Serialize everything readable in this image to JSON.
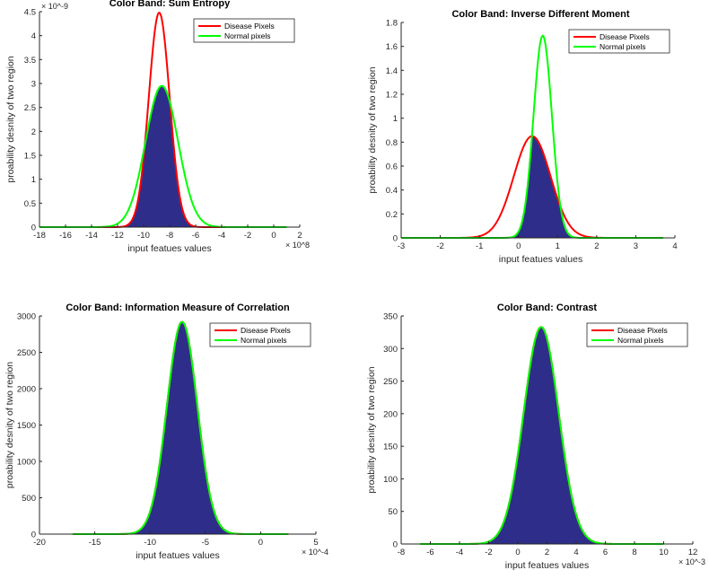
{
  "figure": {
    "ylabel_common": "proability desnity of two region",
    "xlabel_common": "input featues values"
  },
  "colors": {
    "disease": "#ff0000",
    "normal": "#00ff00",
    "fill": "#2e2e8a",
    "axis": "#262626"
  },
  "chart_data": [
    {
      "type": "line",
      "title": "Color Band: Sum Entropy",
      "xlabel": "input featues values",
      "ylabel": "proability desnity of two region",
      "xlim": [
        -18,
        2
      ],
      "ylim": [
        0,
        4.5
      ],
      "xticks": [
        -18,
        -16,
        -14,
        -12,
        -10,
        -8,
        -6,
        -4,
        -2,
        0,
        2
      ],
      "yticks": [
        0,
        0.5,
        1,
        1.5,
        2,
        2.5,
        3,
        3.5,
        4,
        4.5
      ],
      "x_exponent": "× 10^8",
      "y_exponent": "× 10^-9",
      "legend": [
        "Disease Pixels",
        "Normal pixels"
      ],
      "legend_position": "top-right",
      "series": [
        {
          "name": "Disease Pixels",
          "mean": -8.8,
          "std": 0.8,
          "peak": 4.48,
          "range": [
            -14,
            0
          ],
          "color": "#ff0000"
        },
        {
          "name": "Normal pixels",
          "mean": -8.6,
          "std": 1.25,
          "peak": 2.95,
          "range": [
            -18,
            1
          ],
          "color": "#00ff00"
        }
      ],
      "shaded_overlap": true
    },
    {
      "type": "line",
      "title": "Color Band: Inverse Different Moment",
      "xlabel": "input featues values",
      "ylabel": "proability desnity of two region",
      "xlim": [
        -3,
        4
      ],
      "ylim": [
        0,
        1.8
      ],
      "xticks": [
        -3,
        -2,
        -1,
        0,
        1,
        2,
        3,
        4
      ],
      "yticks": [
        0,
        0.2,
        0.4,
        0.6,
        0.8,
        1,
        1.2,
        1.4,
        1.6,
        1.8
      ],
      "legend": [
        "Disease Pixels",
        "Normal pixels"
      ],
      "legend_position": "top-right",
      "series": [
        {
          "name": "Disease Pixels",
          "mean": 0.35,
          "std": 0.47,
          "peak": 0.85,
          "range": [
            -3,
            3.7
          ],
          "color": "#ff0000"
        },
        {
          "name": "Normal pixels",
          "mean": 0.62,
          "std": 0.235,
          "peak": 1.69,
          "range": [
            -3,
            3.7
          ],
          "color": "#00ff00"
        }
      ],
      "shaded_overlap": true
    },
    {
      "type": "line",
      "title": "Color Band: Information Measure of Correlation",
      "xlabel": "input featues values",
      "ylabel": "proability desnity of two region",
      "xlim": [
        -20,
        5
      ],
      "ylim": [
        0,
        3000
      ],
      "xticks": [
        -20,
        -15,
        -10,
        -5,
        0,
        5
      ],
      "yticks": [
        0,
        500,
        1000,
        1500,
        2000,
        2500,
        3000
      ],
      "x_exponent": "× 10^-4",
      "legend": [
        "Disease Pixels",
        "Normal pixels"
      ],
      "legend_position": "top-right",
      "series": [
        {
          "name": "Disease Pixels",
          "mean": -7.1,
          "std": 1.37,
          "peak": 2920,
          "range": [
            -17,
            2.5
          ],
          "color": "#ff0000"
        },
        {
          "name": "Normal pixels",
          "mean": -7.1,
          "std": 1.37,
          "peak": 2920,
          "range": [
            -17,
            2.5
          ],
          "color": "#00ff00"
        }
      ],
      "shaded_overlap": true
    },
    {
      "type": "line",
      "title": "Color Band: Contrast",
      "xlabel": "input featues values",
      "ylabel": "proability desnity of two region",
      "xlim": [
        -8,
        12
      ],
      "ylim": [
        0,
        350
      ],
      "xticks": [
        -8,
        -6,
        -4,
        -2,
        0,
        2,
        4,
        6,
        8,
        10,
        12
      ],
      "yticks": [
        0,
        50,
        100,
        150,
        200,
        250,
        300,
        350
      ],
      "x_exponent": "× 10^-3",
      "legend": [
        "Disease Pixels",
        "Normal pixels"
      ],
      "legend_position": "top-right",
      "series": [
        {
          "name": "Disease Pixels",
          "mean": 1.6,
          "std": 1.2,
          "peak": 333,
          "range": [
            -6.7,
            10
          ],
          "color": "#ff0000"
        },
        {
          "name": "Normal pixels",
          "mean": 1.6,
          "std": 1.2,
          "peak": 333,
          "range": [
            -6.7,
            10
          ],
          "color": "#00ff00"
        }
      ],
      "shaded_overlap": true
    }
  ]
}
